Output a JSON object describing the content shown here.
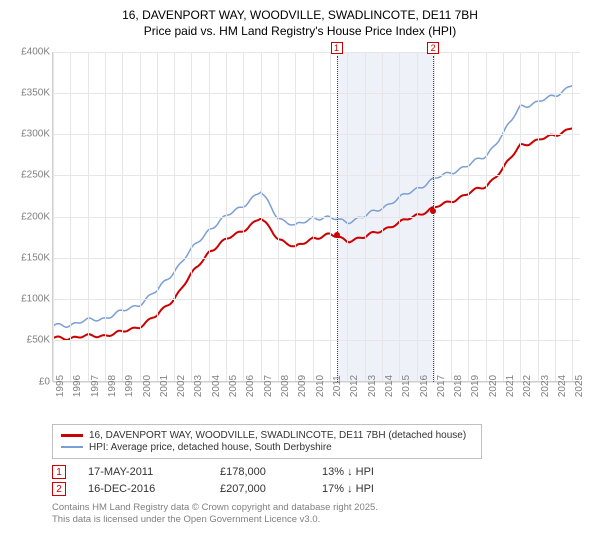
{
  "title_line1": "16, DAVENPORT WAY, WOODVILLE, SWADLINCOTE, DE11 7BH",
  "title_line2": "Price paid vs. HM Land Registry's House Price Index (HPI)",
  "chart": {
    "type": "line",
    "x_range": [
      1995,
      2025.5
    ],
    "y_range": [
      0,
      400000
    ],
    "y_ticks": [
      0,
      50000,
      100000,
      150000,
      200000,
      250000,
      300000,
      350000,
      400000
    ],
    "y_tick_labels": [
      "£0",
      "£50K",
      "£100K",
      "£150K",
      "£200K",
      "£250K",
      "£300K",
      "£350K",
      "£400K"
    ],
    "x_ticks": [
      1995,
      1996,
      1997,
      1998,
      1999,
      2000,
      2001,
      2002,
      2003,
      2004,
      2005,
      2006,
      2007,
      2008,
      2009,
      2010,
      2011,
      2012,
      2013,
      2014,
      2015,
      2016,
      2017,
      2018,
      2019,
      2020,
      2021,
      2022,
      2023,
      2024,
      2025
    ],
    "grid_color": "#e6e6e6",
    "background_color": "#ffffff",
    "band": {
      "start": 2011.38,
      "end": 2016.96,
      "color": "#eef2f8"
    },
    "markers": [
      {
        "id": "1",
        "x": 2011.38,
        "y": 178000
      },
      {
        "id": "2",
        "x": 2016.96,
        "y": 207000
      }
    ],
    "series": [
      {
        "name": "property",
        "color": "#cc0000",
        "width": 2,
        "points": [
          [
            1995,
            53000
          ],
          [
            1996,
            54000
          ],
          [
            1997,
            55000
          ],
          [
            1998,
            57000
          ],
          [
            1999,
            60000
          ],
          [
            2000,
            68000
          ],
          [
            2001,
            80000
          ],
          [
            2002,
            102000
          ],
          [
            2003,
            130000
          ],
          [
            2004,
            158000
          ],
          [
            2005,
            172000
          ],
          [
            2006,
            185000
          ],
          [
            2007,
            198000
          ],
          [
            2008,
            175000
          ],
          [
            2009,
            162000
          ],
          [
            2010,
            175000
          ],
          [
            2011,
            178000
          ],
          [
            2012,
            172000
          ],
          [
            2013,
            175000
          ],
          [
            2014,
            185000
          ],
          [
            2015,
            192000
          ],
          [
            2016,
            203000
          ],
          [
            2017,
            210000
          ],
          [
            2018,
            220000
          ],
          [
            2019,
            228000
          ],
          [
            2020,
            238000
          ],
          [
            2021,
            258000
          ],
          [
            2022,
            288000
          ],
          [
            2023,
            292000
          ],
          [
            2024,
            300000
          ],
          [
            2025,
            308000
          ]
        ]
      },
      {
        "name": "hpi",
        "color": "#7a9fd4",
        "width": 1.5,
        "points": [
          [
            1995,
            68000
          ],
          [
            1996,
            70000
          ],
          [
            1997,
            74000
          ],
          [
            1998,
            78000
          ],
          [
            1999,
            85000
          ],
          [
            2000,
            95000
          ],
          [
            2001,
            110000
          ],
          [
            2002,
            135000
          ],
          [
            2003,
            160000
          ],
          [
            2004,
            185000
          ],
          [
            2005,
            200000
          ],
          [
            2006,
            215000
          ],
          [
            2007,
            230000
          ],
          [
            2008,
            200000
          ],
          [
            2009,
            188000
          ],
          [
            2010,
            200000
          ],
          [
            2011,
            198000
          ],
          [
            2012,
            195000
          ],
          [
            2013,
            200000
          ],
          [
            2014,
            212000
          ],
          [
            2015,
            222000
          ],
          [
            2016,
            235000
          ],
          [
            2017,
            245000
          ],
          [
            2018,
            255000
          ],
          [
            2019,
            262000
          ],
          [
            2020,
            275000
          ],
          [
            2021,
            300000
          ],
          [
            2022,
            335000
          ],
          [
            2023,
            338000
          ],
          [
            2024,
            348000
          ],
          [
            2025,
            360000
          ]
        ]
      }
    ]
  },
  "legend": {
    "items": [
      {
        "color": "#cc0000",
        "label": "16, DAVENPORT WAY, WOODVILLE, SWADLINCOTE, DE11 7BH (detached house)"
      },
      {
        "color": "#7a9fd4",
        "label": "HPI: Average price, detached house, South Derbyshire"
      }
    ]
  },
  "sales": [
    {
      "id": "1",
      "date": "17-MAY-2011",
      "price": "£178,000",
      "delta": "13% ↓ HPI"
    },
    {
      "id": "2",
      "date": "16-DEC-2016",
      "price": "£207,000",
      "delta": "17% ↓ HPI"
    }
  ],
  "footer_line1": "Contains HM Land Registry data © Crown copyright and database right 2025.",
  "footer_line2": "This data is licensed under the Open Government Licence v3.0."
}
